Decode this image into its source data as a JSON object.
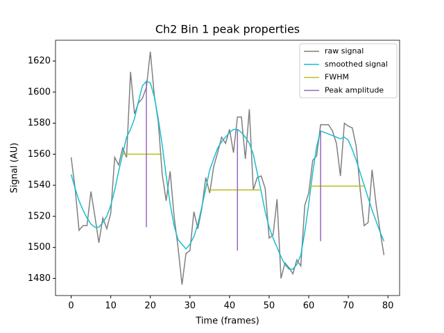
{
  "chart_data": {
    "type": "line",
    "title": "Ch2 Bin 1 peak properties",
    "xlabel": "Time (frames)",
    "ylabel": "Signal (AU)",
    "x": [
      0,
      1,
      2,
      3,
      4,
      5,
      6,
      7,
      8,
      9,
      10,
      11,
      12,
      13,
      14,
      15,
      16,
      17,
      18,
      19,
      20,
      21,
      22,
      23,
      24,
      25,
      26,
      27,
      28,
      29,
      30,
      31,
      32,
      33,
      34,
      35,
      36,
      37,
      38,
      39,
      40,
      41,
      42,
      43,
      44,
      45,
      46,
      47,
      48,
      49,
      50,
      51,
      52,
      53,
      54,
      55,
      56,
      57,
      58,
      59,
      60,
      61,
      62,
      63,
      64,
      65,
      66,
      67,
      68,
      69,
      70,
      71,
      72,
      73,
      74,
      75,
      76,
      77,
      78,
      79
    ],
    "series": [
      {
        "name": "raw signal",
        "color": "#7f7f7f",
        "values": [
          1558,
          1538,
          1511,
          1514,
          1514,
          1536,
          1520,
          1503,
          1519,
          1512,
          1522,
          1558,
          1553,
          1564,
          1558,
          1613,
          1586,
          1593,
          1596,
          1603,
          1626,
          1598,
          1581,
          1547,
          1530,
          1549,
          1520,
          1500,
          1476,
          1496,
          1498,
          1523,
          1512,
          1525,
          1545,
          1535,
          1552,
          1561,
          1571,
          1567,
          1576,
          1561,
          1584,
          1584,
          1557,
          1589,
          1537,
          1545,
          1546,
          1538,
          1506,
          1508,
          1531,
          1480,
          1490,
          1487,
          1483,
          1492,
          1488,
          1527,
          1535,
          1556,
          1559,
          1579,
          1579,
          1579,
          1575,
          1567,
          1546,
          1580,
          1578,
          1577,
          1565,
          1537,
          1514,
          1516,
          1550,
          1528,
          1511,
          1495
        ]
      },
      {
        "name": "smoothed signal",
        "color": "#17becf",
        "values": [
          1547,
          1538,
          1530,
          1524,
          1519,
          1515,
          1513,
          1513,
          1516,
          1520,
          1527,
          1537,
          1549,
          1560,
          1571,
          1576,
          1583,
          1594,
          1604,
          1607,
          1606,
          1597,
          1583,
          1566,
          1546,
          1528,
          1514,
          1505,
          1502,
          1499,
          1502,
          1507,
          1515,
          1526,
          1538,
          1550,
          1557,
          1564,
          1568,
          1571,
          1574,
          1576,
          1576,
          1574,
          1571,
          1567,
          1560,
          1548,
          1536,
          1523,
          1513,
          1506,
          1500,
          1494,
          1489,
          1486,
          1486,
          1489,
          1495,
          1510,
          1528,
          1548,
          1565,
          1575,
          1574,
          1573,
          1572,
          1571,
          1570,
          1571,
          1569,
          1563,
          1556,
          1548,
          1540,
          1532,
          1524,
          1517,
          1510,
          1504
        ]
      }
    ],
    "hlines": {
      "name": "FWHM",
      "color": "#bcbd22",
      "y": [
        1560,
        1537,
        1539.5
      ],
      "xmin": [
        13,
        34.5,
        60
      ],
      "xmax": [
        23,
        48,
        74
      ]
    },
    "vlines": {
      "name": "Peak amplitude",
      "color": "#9467bd",
      "x": [
        19,
        42,
        63
      ],
      "ymin": [
        1513,
        1498,
        1504
      ],
      "ymax": [
        1607,
        1576,
        1575
      ]
    },
    "xlim": [
      -3.95,
      82.95
    ],
    "ylim": [
      1469,
      1633.4
    ],
    "xticks": [
      0,
      10,
      20,
      30,
      40,
      50,
      60,
      70,
      80
    ],
    "yticks": [
      1480,
      1500,
      1520,
      1540,
      1560,
      1580,
      1600,
      1620
    ],
    "legend": "upper right"
  }
}
